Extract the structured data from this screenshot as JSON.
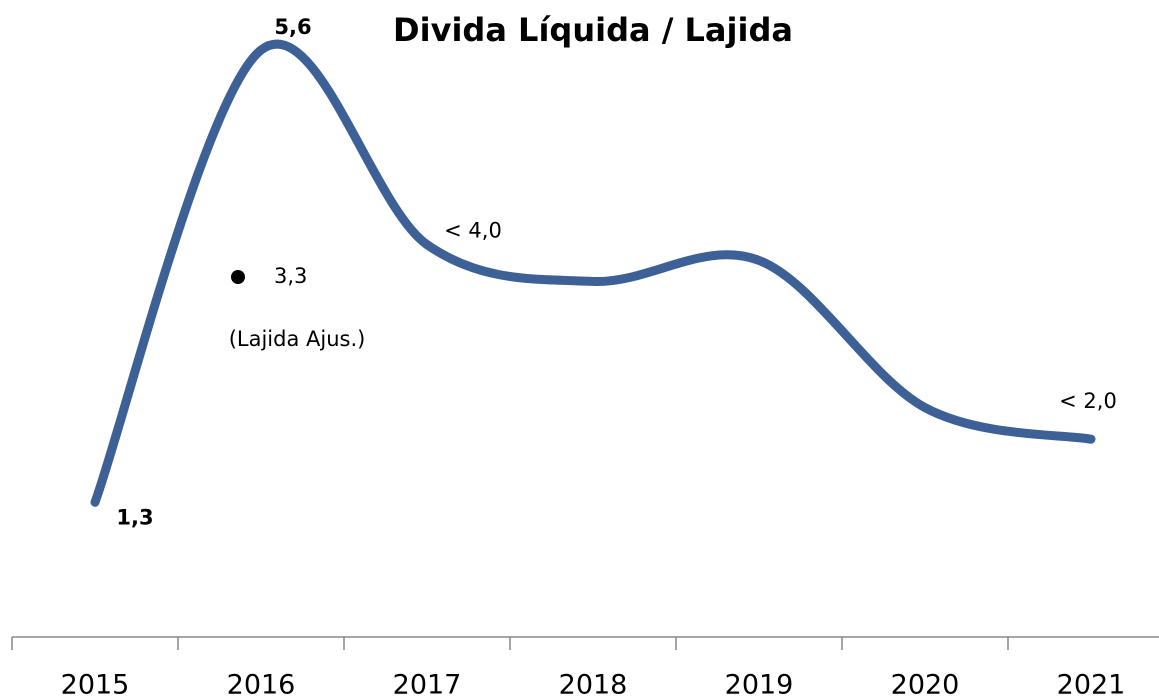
{
  "chart_data": {
    "type": "line",
    "title": "Divida Líquida / Lajida",
    "categories": [
      "2015",
      "2016",
      "2017",
      "2018",
      "2019",
      "2020",
      "2021"
    ],
    "series": [
      {
        "color": "#3d6196",
        "values": [
          1.3,
          5.6,
          3.75,
          3.4,
          3.6,
          2.2,
          1.9
        ],
        "value_labels": [
          "1,3",
          "5,6",
          "< 4,0",
          null,
          null,
          null,
          "< 2,0"
        ]
      }
    ],
    "ylim": [
      0,
      6
    ],
    "adjusted_point": {
      "label": "(Lajida Ajus.)",
      "value": 3.3,
      "value_label": "3,3",
      "color": "#000000"
    }
  }
}
